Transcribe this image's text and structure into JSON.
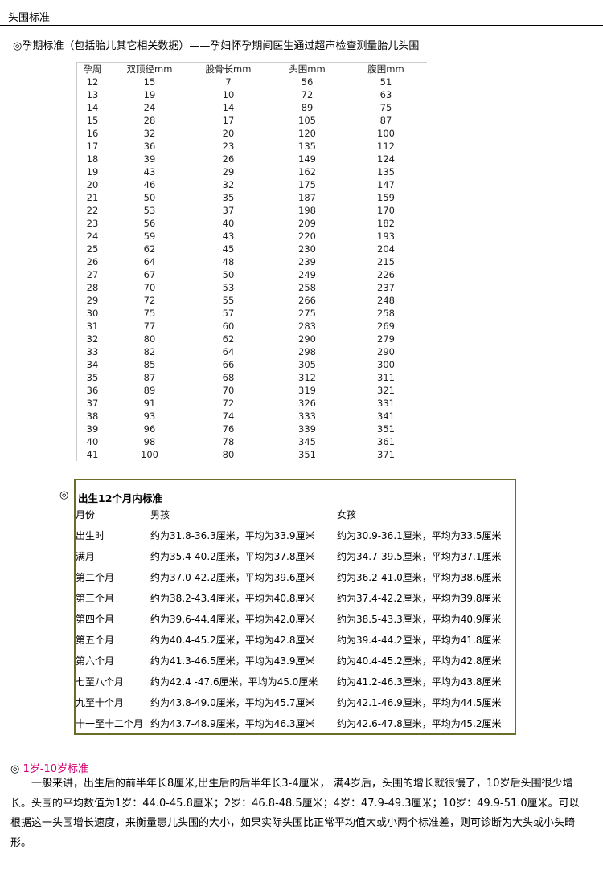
{
  "page_title": "头围标准",
  "section1": {
    "heading": "◎孕期标准（包括胎儿其它相关数据）——孕妇怀孕期间医生通过超声检查测量胎儿头围",
    "columns": [
      "孕周",
      "双顶径mm",
      "股骨长mm",
      "头围mm",
      "腹围mm"
    ],
    "rows": [
      [
        "12",
        "15",
        "7",
        "56",
        "51"
      ],
      [
        "13",
        "19",
        "10",
        "72",
        "63"
      ],
      [
        "14",
        "24",
        "14",
        "89",
        "75"
      ],
      [
        "15",
        "28",
        "17",
        "105",
        "87"
      ],
      [
        "16",
        "32",
        "20",
        "120",
        "100"
      ],
      [
        "17",
        "36",
        "23",
        "135",
        "112"
      ],
      [
        "18",
        "39",
        "26",
        "149",
        "124"
      ],
      [
        "19",
        "43",
        "29",
        "162",
        "135"
      ],
      [
        "20",
        "46",
        "32",
        "175",
        "147"
      ],
      [
        "21",
        "50",
        "35",
        "187",
        "159"
      ],
      [
        "22",
        "53",
        "37",
        "198",
        "170"
      ],
      [
        "23",
        "56",
        "40",
        "209",
        "182"
      ],
      [
        "24",
        "59",
        "43",
        "220",
        "193"
      ],
      [
        "25",
        "62",
        "45",
        "230",
        "204"
      ],
      [
        "26",
        "64",
        "48",
        "239",
        "215"
      ],
      [
        "27",
        "67",
        "50",
        "249",
        "226"
      ],
      [
        "28",
        "70",
        "53",
        "258",
        "237"
      ],
      [
        "29",
        "72",
        "55",
        "266",
        "248"
      ],
      [
        "30",
        "75",
        "57",
        "275",
        "258"
      ],
      [
        "31",
        "77",
        "60",
        "283",
        "269"
      ],
      [
        "32",
        "80",
        "62",
        "290",
        "279"
      ],
      [
        "33",
        "82",
        "64",
        "298",
        "290"
      ],
      [
        "34",
        "85",
        "66",
        "305",
        "300"
      ],
      [
        "35",
        "87",
        "68",
        "312",
        "311"
      ],
      [
        "36",
        "89",
        "70",
        "319",
        "321"
      ],
      [
        "37",
        "91",
        "72",
        "326",
        "331"
      ],
      [
        "38",
        "93",
        "74",
        "333",
        "341"
      ],
      [
        "39",
        "96",
        "76",
        "339",
        "351"
      ],
      [
        "40",
        "98",
        "78",
        "345",
        "361"
      ],
      [
        "41",
        "100",
        "80",
        "351",
        "371"
      ]
    ]
  },
  "section2": {
    "marker": "◎",
    "title": "出生12个月内标准",
    "columns": [
      "月份",
      "男孩",
      "女孩"
    ],
    "rows": [
      [
        "出生时",
        "约为31.8-36.3厘米，平均为33.9厘米",
        "约为30.9-36.1厘米，平均为33.5厘米"
      ],
      [
        "满月",
        "约为35.4-40.2厘米，平均为37.8厘米",
        "约为34.7-39.5厘米，平均为37.1厘米"
      ],
      [
        "第二个月",
        "约为37.0-42.2厘米，平均为39.6厘米",
        "约为36.2-41.0厘米，平均为38.6厘米"
      ],
      [
        "第三个月",
        "约为38.2-43.4厘米，平均为40.8厘米",
        "约为37.4-42.2厘米，平均为39.8厘米"
      ],
      [
        "第四个月",
        "约为39.6-44.4厘米，平均为42.0厘米",
        "约为38.5-43.3厘米，平均为40.9厘米"
      ],
      [
        "第五个月",
        "约为40.4-45.2厘米，平均为42.8厘米",
        "约为39.4-44.2厘米，平均为41.8厘米"
      ],
      [
        "第六个月",
        "约为41.3-46.5厘米，平均为43.9厘米",
        "约为40.4-45.2厘米，平均为42.8厘米"
      ],
      [
        "七至八个月",
        "约为42.4 -47.6厘米，平均为45.0厘米",
        "约为41.2-46.3厘米，平均为43.8厘米"
      ],
      [
        "九至十个月",
        "约为43.8-49.0厘米，平均为45.7厘米",
        "约为42.1-46.9厘米，平均为44.5厘米"
      ],
      [
        "十一至十二个月",
        "约为43.7-48.9厘米，平均为46.3厘米",
        "约为42.6-47.8厘米，平均为45.2厘米"
      ]
    ],
    "border_color": "#6b6b2a"
  },
  "section3": {
    "marker": "◎",
    "title": "1岁-10岁标准",
    "title_color": "#d0006f",
    "paragraph": "一般来讲，出生后的前半年长8厘米,出生后的后半年长3-4厘米， 满4岁后，头围的增长就很慢了，10岁后头围很少增长。头围的平均数值为1岁：44.0-45.8厘米；2岁：46.8-48.5厘米；4岁：47.9-49.3厘米；10岁：49.9-51.0厘米。可以根据这一头围增长速度，来衡量患儿头围的大小，如果实际头围比正常平均值大或小两个标准差，则可诊断为大头或小头畸形。"
  }
}
